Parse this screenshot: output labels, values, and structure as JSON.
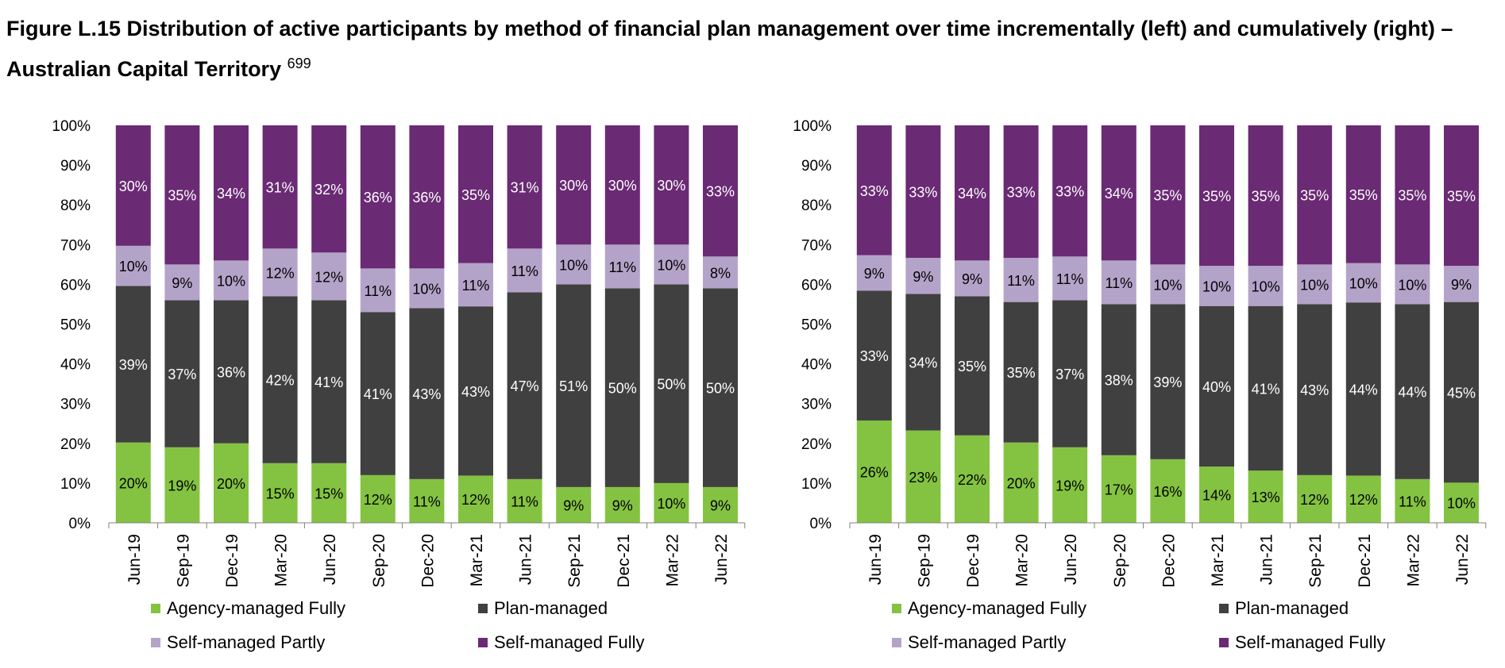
{
  "figure": {
    "title": "Figure L.15 Distribution of active participants by method of financial plan management over time incrementally (left) and cumulatively (right) – Australian Capital Territory",
    "footnote": "699"
  },
  "colors": {
    "agency": "#84c341",
    "plan": "#404040",
    "self_partly": "#b4a3c9",
    "self_fully": "#6a2a74"
  },
  "chart_data": [
    {
      "type": "bar",
      "stacked": true,
      "normalized": true,
      "categories": [
        "Jun-19",
        "Sep-19",
        "Dec-19",
        "Mar-20",
        "Jun-20",
        "Sep-20",
        "Dec-20",
        "Mar-21",
        "Jun-21",
        "Sep-21",
        "Dec-21",
        "Mar-22",
        "Jun-22"
      ],
      "yticks": [
        "0%",
        "10%",
        "20%",
        "30%",
        "40%",
        "50%",
        "60%",
        "70%",
        "80%",
        "90%",
        "100%"
      ],
      "ylim": [
        0,
        100
      ],
      "legend_position": "bottom",
      "series": [
        {
          "name": "Agency-managed Fully",
          "color": "#84c341",
          "values": [
            20,
            19,
            20,
            15,
            15,
            12,
            11,
            12,
            11,
            9,
            9,
            10,
            9
          ],
          "labels": [
            "20%",
            "19%",
            "20%",
            "15%",
            "15%",
            "12%",
            "11%",
            "12%",
            "11%",
            "9%",
            "9%",
            "10%",
            "9%"
          ]
        },
        {
          "name": "Plan-managed",
          "color": "#404040",
          "values": [
            39,
            37,
            36,
            42,
            41,
            41,
            43,
            43,
            47,
            51,
            50,
            50,
            50
          ],
          "labels": [
            "39%",
            "37%",
            "36%",
            "42%",
            "41%",
            "41%",
            "43%",
            "43%",
            "47%",
            "51%",
            "50%",
            "50%",
            "50%"
          ]
        },
        {
          "name": "Self-managed Partly",
          "color": "#b4a3c9",
          "values": [
            10,
            9,
            10,
            12,
            12,
            11,
            10,
            11,
            11,
            10,
            11,
            10,
            8
          ],
          "labels": [
            "10%",
            "9%",
            "10%",
            "12%",
            "12%",
            "11%",
            "10%",
            "11%",
            "11%",
            "10%",
            "11%",
            "10%",
            "8%"
          ]
        },
        {
          "name": "Self-managed Fully",
          "color": "#6a2a74",
          "values": [
            30,
            35,
            34,
            31,
            32,
            36,
            36,
            35,
            31,
            30,
            30,
            30,
            33
          ],
          "labels": [
            "30%",
            "35%",
            "34%",
            "31%",
            "32%",
            "36%",
            "36%",
            "35%",
            "31%",
            "30%",
            "30%",
            "30%",
            "33%"
          ]
        }
      ]
    },
    {
      "type": "bar",
      "stacked": true,
      "normalized": true,
      "categories": [
        "Jun-19",
        "Sep-19",
        "Dec-19",
        "Mar-20",
        "Jun-20",
        "Sep-20",
        "Dec-20",
        "Mar-21",
        "Jun-21",
        "Sep-21",
        "Dec-21",
        "Mar-22",
        "Jun-22"
      ],
      "yticks": [
        "0%",
        "10%",
        "20%",
        "30%",
        "40%",
        "50%",
        "60%",
        "70%",
        "80%",
        "90%",
        "100%"
      ],
      "ylim": [
        0,
        100
      ],
      "legend_position": "bottom",
      "series": [
        {
          "name": "Agency-managed Fully",
          "color": "#84c341",
          "values": [
            26,
            23,
            22,
            20,
            19,
            17,
            16,
            14,
            13,
            12,
            12,
            11,
            10
          ],
          "labels": [
            "26%",
            "23%",
            "22%",
            "20%",
            "19%",
            "17%",
            "16%",
            "14%",
            "13%",
            "12%",
            "12%",
            "11%",
            "10%"
          ]
        },
        {
          "name": "Plan-managed",
          "color": "#404040",
          "values": [
            33,
            34,
            35,
            35,
            37,
            38,
            39,
            40,
            41,
            43,
            44,
            44,
            45
          ],
          "labels": [
            "33%",
            "34%",
            "35%",
            "35%",
            "37%",
            "38%",
            "39%",
            "40%",
            "41%",
            "43%",
            "44%",
            "44%",
            "45%"
          ]
        },
        {
          "name": "Self-managed Partly",
          "color": "#b4a3c9",
          "values": [
            9,
            9,
            9,
            11,
            11,
            11,
            10,
            10,
            10,
            10,
            10,
            10,
            9
          ],
          "labels": [
            "9%",
            "9%",
            "9%",
            "11%",
            "11%",
            "11%",
            "10%",
            "10%",
            "10%",
            "10%",
            "10%",
            "10%",
            "9%"
          ]
        },
        {
          "name": "Self-managed Fully",
          "color": "#6a2a74",
          "values": [
            33,
            33,
            34,
            33,
            33,
            34,
            35,
            35,
            35,
            35,
            35,
            35,
            35
          ],
          "labels": [
            "33%",
            "33%",
            "34%",
            "33%",
            "33%",
            "34%",
            "35%",
            "35%",
            "35%",
            "35%",
            "35%",
            "35%",
            "35%"
          ]
        }
      ]
    }
  ]
}
